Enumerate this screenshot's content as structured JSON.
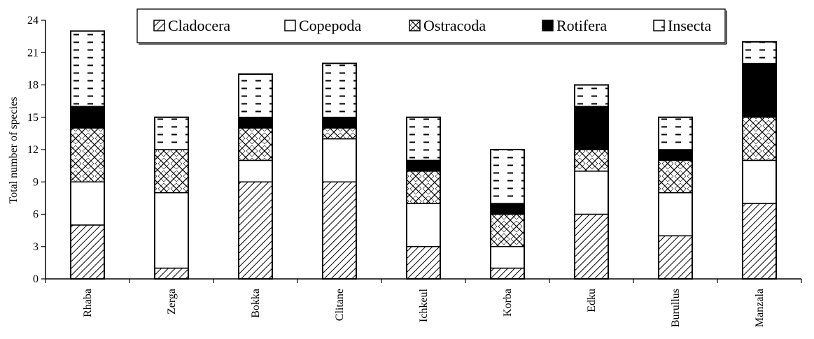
{
  "chart_data": {
    "type": "bar",
    "stacked": true,
    "title": "",
    "xlabel": "",
    "ylabel": "Total number of species",
    "ylim": [
      0,
      24
    ],
    "yticks": [
      0,
      3,
      6,
      9,
      12,
      15,
      18,
      21,
      24
    ],
    "grid": false,
    "legend_position": "top",
    "categories": [
      "Rhaba",
      "Zerga",
      "Bokka",
      "Clitane",
      "Ichkeul",
      "Korba",
      "Edku",
      "Burullus",
      "Manzala"
    ],
    "series": [
      {
        "name": "Cladocera",
        "pattern": "hatch",
        "values": [
          5,
          1,
          9,
          9,
          3,
          1,
          6,
          4,
          7
        ]
      },
      {
        "name": "Copepoda",
        "pattern": "white",
        "values": [
          4,
          7,
          2,
          4,
          4,
          2,
          4,
          4,
          4
        ]
      },
      {
        "name": "Ostracoda",
        "pattern": "crosshatch",
        "values": [
          5,
          4,
          3,
          1,
          3,
          3,
          2,
          3,
          4
        ]
      },
      {
        "name": "Rotifera",
        "pattern": "black",
        "values": [
          2,
          0,
          1,
          1,
          1,
          1,
          4,
          1,
          5
        ]
      },
      {
        "name": "Insecta",
        "pattern": "dashes",
        "values": [
          7,
          3,
          4,
          5,
          4,
          5,
          2,
          3,
          2
        ]
      }
    ]
  }
}
